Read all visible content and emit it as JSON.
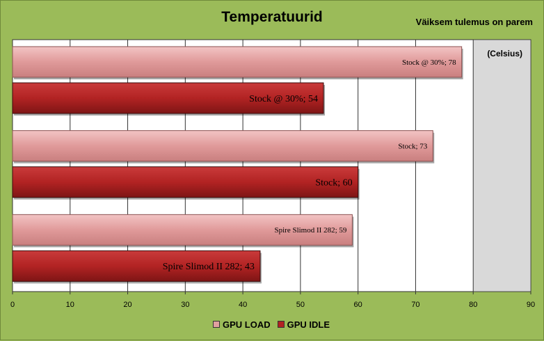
{
  "chart_data": {
    "type": "bar",
    "orientation": "horizontal",
    "title": "Temperatuurid",
    "subtitle": "Väiksem tulemus on parem",
    "unit_label": "(Celsius)",
    "xlim": [
      0,
      90
    ],
    "x_ticks": [
      "0",
      "10",
      "20",
      "30",
      "40",
      "50",
      "60",
      "70",
      "80",
      "90"
    ],
    "grid": true,
    "legend_position": "bottom",
    "background": "#9bbb59",
    "plot_background": "#ffffff",
    "series": [
      {
        "name": "GPU LOAD",
        "color": "#e0a0a0"
      },
      {
        "name": "GPU IDLE",
        "color": "#b22222"
      }
    ],
    "groups": [
      {
        "category": "Stock @ 30%",
        "load": 78,
        "idle": 54,
        "load_label": "Stock @ 30%; 78",
        "idle_label": "Stock @ 30%; 54"
      },
      {
        "category": "Stock",
        "load": 73,
        "idle": 60,
        "load_label": "Stock; 73",
        "idle_label": "Stock; 60"
      },
      {
        "category": "Spire Slimod II 282",
        "load": 59,
        "idle": 43,
        "load_label": "Spire Slimod II 282; 59",
        "idle_label": "Spire Slimod II 282; 43"
      }
    ]
  }
}
